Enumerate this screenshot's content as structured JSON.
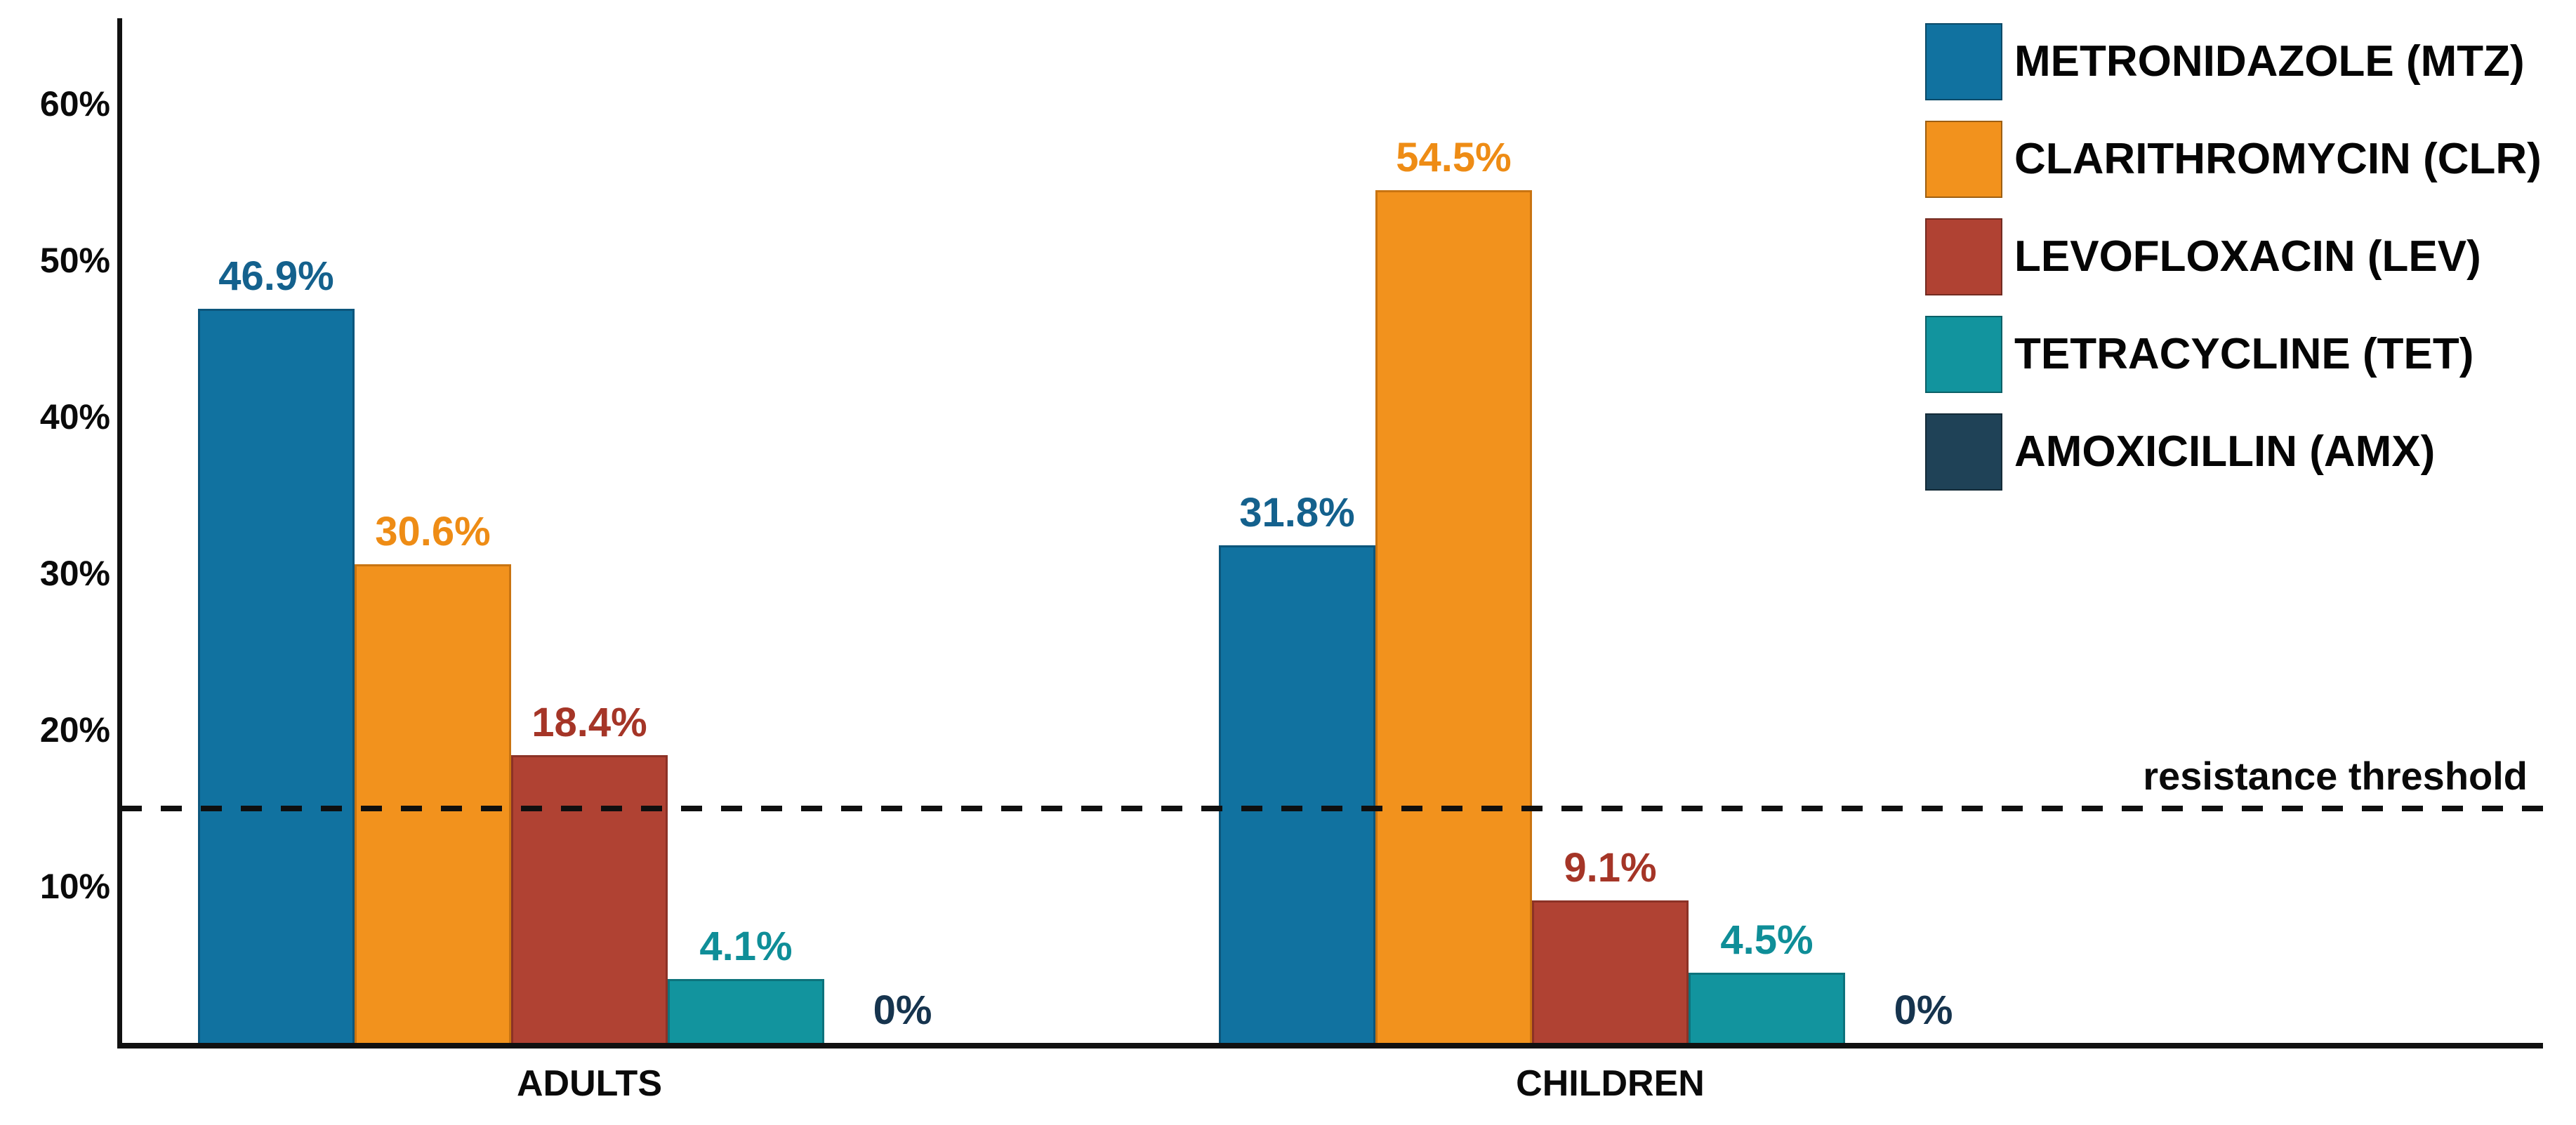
{
  "chart_data": {
    "type": "bar",
    "title": "",
    "categories": [
      "ADULTS",
      "CHILDREN"
    ],
    "series": [
      {
        "name": "METRONIDAZOLE (MTZ)",
        "color": "#1172a0",
        "edge_color": "#0c567c",
        "label_color": "#14618d",
        "values": [
          46.9,
          31.8
        ],
        "value_labels": [
          "46.9%",
          "31.8%"
        ]
      },
      {
        "name": "CLARITHROMYCIN (CLR)",
        "color": "#f2921d",
        "edge_color": "#c97411",
        "label_color": "#ee8c15",
        "values": [
          30.6,
          54.5
        ],
        "value_labels": [
          "30.6%",
          "54.5%"
        ]
      },
      {
        "name": "LEVOFLOXACIN (LEV)",
        "color": "#b04233",
        "edge_color": "#8c3226",
        "label_color": "#a53527",
        "values": [
          18.4,
          9.1
        ],
        "value_labels": [
          "18.4%",
          "9.1%"
        ]
      },
      {
        "name": "TETRACYCLINE (TET)",
        "color": "#12949e",
        "edge_color": "#0d737c",
        "label_color": "#0f8e98",
        "values": [
          4.1,
          4.5
        ],
        "value_labels": [
          "4.1%",
          "4.5%"
        ]
      },
      {
        "name": "AMOXICILLIN (AMX)",
        "color": "#1f4257",
        "edge_color": "#15303f",
        "label_color": "#16344e",
        "values": [
          0,
          0
        ],
        "value_labels": [
          "0%",
          "0%"
        ]
      }
    ],
    "y_axis": {
      "tick_labels": [
        "10%",
        "20%",
        "30%",
        "40%",
        "50%",
        "60%"
      ],
      "tick_values": [
        10,
        20,
        30,
        40,
        50,
        60
      ],
      "ylim": [
        0,
        65.5
      ]
    },
    "threshold": {
      "value": 15,
      "label": "resistance threshold"
    },
    "legend_position": "top-right",
    "grid": false,
    "colors": {
      "axis": "#111111",
      "text": "#0a0a0a",
      "background": "#ffffff"
    }
  }
}
